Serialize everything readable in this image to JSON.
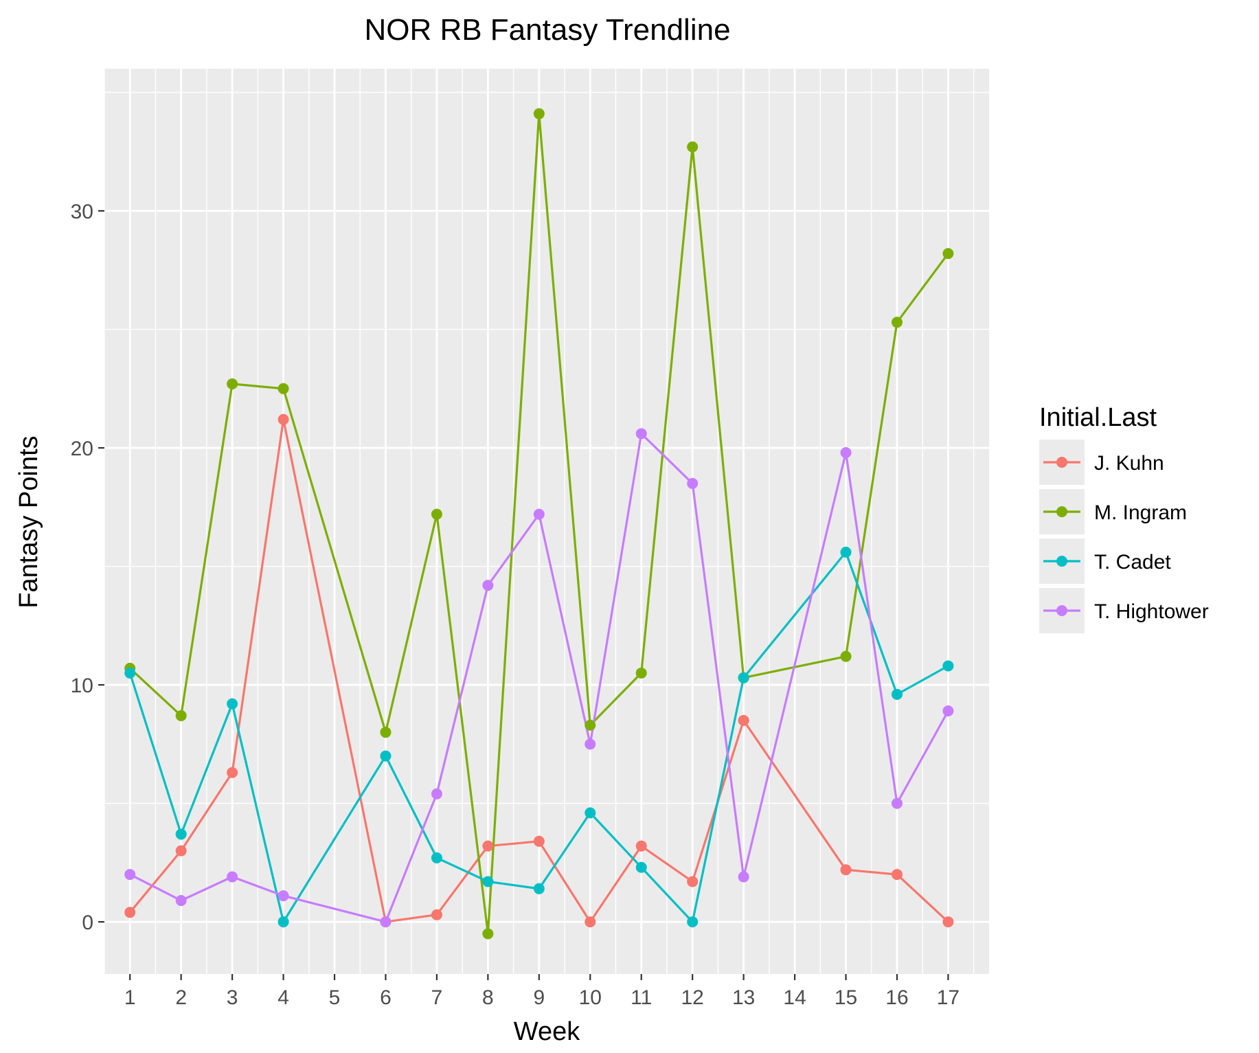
{
  "chart_data": {
    "type": "line",
    "title": "NOR RB Fantasy Trendline",
    "xlabel": "Week",
    "ylabel": "Fantasy Points",
    "x_ticks": [
      "1",
      "2",
      "3",
      "4",
      "5",
      "6",
      "7",
      "8",
      "9",
      "10",
      "11",
      "12",
      "13",
      "14",
      "15",
      "16",
      "17"
    ],
    "y_ticks": [
      "0",
      "10",
      "20",
      "30"
    ],
    "xlim": [
      0.5,
      17.8
    ],
    "ylim": [
      -2.2,
      36.0
    ],
    "grid": true,
    "legend": {
      "title": "Initial.Last",
      "position": "right"
    },
    "series": [
      {
        "name": "J. Kuhn",
        "color": "#F8766D",
        "points": [
          [
            1,
            0.4
          ],
          [
            2,
            3.0
          ],
          [
            3,
            6.3
          ],
          [
            4,
            21.2
          ],
          [
            6,
            0.0
          ],
          [
            7,
            0.3
          ],
          [
            8,
            3.2
          ],
          [
            9,
            3.4
          ],
          [
            10,
            0.0
          ],
          [
            11,
            3.2
          ],
          [
            12,
            1.7
          ],
          [
            13,
            8.5
          ],
          [
            15,
            2.2
          ],
          [
            16,
            2.0
          ],
          [
            17,
            0.0
          ]
        ]
      },
      {
        "name": "M. Ingram",
        "color": "#7CAE00",
        "points": [
          [
            1,
            10.7
          ],
          [
            2,
            8.7
          ],
          [
            3,
            22.7
          ],
          [
            4,
            22.5
          ],
          [
            6,
            8.0
          ],
          [
            7,
            17.2
          ],
          [
            8,
            -0.5
          ],
          [
            9,
            34.1
          ],
          [
            10,
            8.3
          ],
          [
            11,
            10.5
          ],
          [
            12,
            32.7
          ],
          [
            13,
            10.3
          ],
          [
            15,
            11.2
          ],
          [
            16,
            25.3
          ],
          [
            17,
            28.2
          ]
        ]
      },
      {
        "name": "T. Cadet",
        "color": "#00BFC4",
        "points": [
          [
            1,
            10.5
          ],
          [
            2,
            3.7
          ],
          [
            3,
            9.2
          ],
          [
            4,
            0.0
          ],
          [
            6,
            7.0
          ],
          [
            7,
            2.7
          ],
          [
            8,
            1.7
          ],
          [
            9,
            1.4
          ],
          [
            10,
            4.6
          ],
          [
            11,
            2.3
          ],
          [
            12,
            0.0
          ],
          [
            13,
            10.3
          ],
          [
            15,
            15.6
          ],
          [
            16,
            9.6
          ],
          [
            17,
            10.8
          ]
        ]
      },
      {
        "name": "T. Hightower",
        "color": "#C77CFF",
        "points": [
          [
            1,
            2.0
          ],
          [
            2,
            0.9
          ],
          [
            3,
            1.9
          ],
          [
            4,
            1.1
          ],
          [
            6,
            0.0
          ],
          [
            7,
            5.4
          ],
          [
            8,
            14.2
          ],
          [
            9,
            17.2
          ],
          [
            10,
            7.5
          ],
          [
            11,
            20.6
          ],
          [
            12,
            18.5
          ],
          [
            13,
            1.9
          ],
          [
            15,
            19.8
          ],
          [
            16,
            5.0
          ],
          [
            17,
            8.9
          ]
        ]
      }
    ]
  }
}
